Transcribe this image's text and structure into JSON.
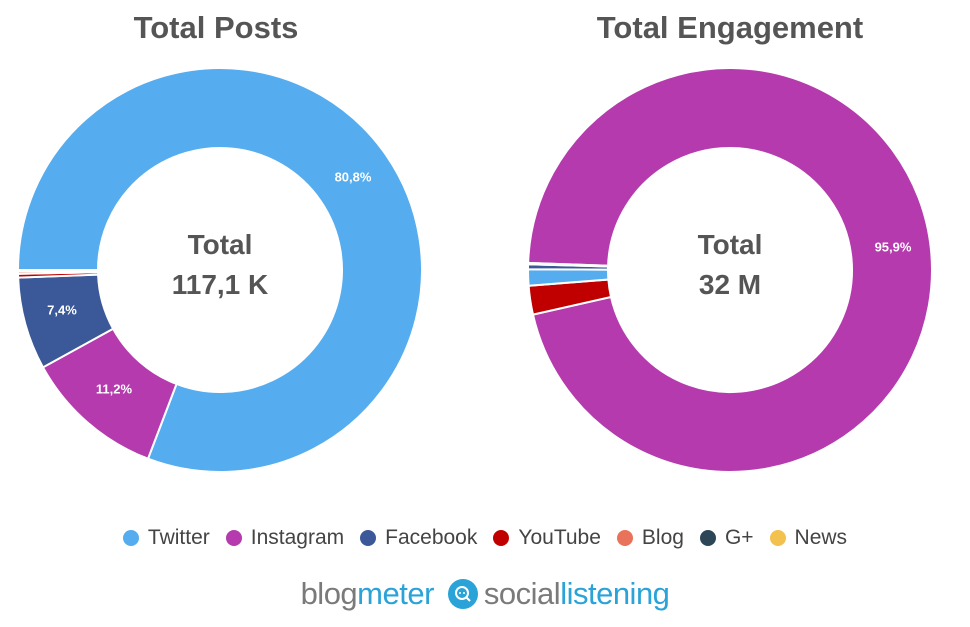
{
  "chart_data": [
    {
      "type": "pie",
      "title": "Total Posts",
      "center_label": "Total",
      "center_value": "117,1 K",
      "slices": [
        {
          "name": "Twitter",
          "value": 80.8,
          "label": "80,8%"
        },
        {
          "name": "Instagram",
          "value": 11.2,
          "label": "11,2%"
        },
        {
          "name": "Facebook",
          "value": 7.4,
          "label": "7,4%"
        },
        {
          "name": "YouTube",
          "value": 0.3,
          "label": ""
        },
        {
          "name": "Blog",
          "value": 0.2,
          "label": ""
        },
        {
          "name": "G+",
          "value": 0.1,
          "label": ""
        },
        {
          "name": "News",
          "value": 0.0,
          "label": ""
        }
      ]
    },
    {
      "type": "pie",
      "title": "Total Engagement",
      "center_label": "Total",
      "center_value": "32 M",
      "slices": [
        {
          "name": "Instagram",
          "value": 95.9,
          "label": "95,9%"
        },
        {
          "name": "YouTube",
          "value": 2.3,
          "label": ""
        },
        {
          "name": "Twitter",
          "value": 1.3,
          "label": ""
        },
        {
          "name": "Facebook",
          "value": 0.4,
          "label": ""
        },
        {
          "name": "G+",
          "value": 0.1,
          "label": ""
        },
        {
          "name": "Blog",
          "value": 0.0,
          "label": ""
        },
        {
          "name": "News",
          "value": 0.0,
          "label": ""
        }
      ]
    }
  ],
  "colors": {
    "Twitter": "#55acee",
    "Instagram": "#b53aad",
    "Facebook": "#3b5998",
    "YouTube": "#c00000",
    "Blog": "#e8735a",
    "G+": "#2c4657",
    "News": "#f2c14e"
  },
  "legend": [
    "Twitter",
    "Instagram",
    "Facebook",
    "YouTube",
    "Blog",
    "G+",
    "News"
  ],
  "brand": {
    "part1": "blog",
    "part2": "meter",
    "part3": "social",
    "part4": "listening"
  }
}
